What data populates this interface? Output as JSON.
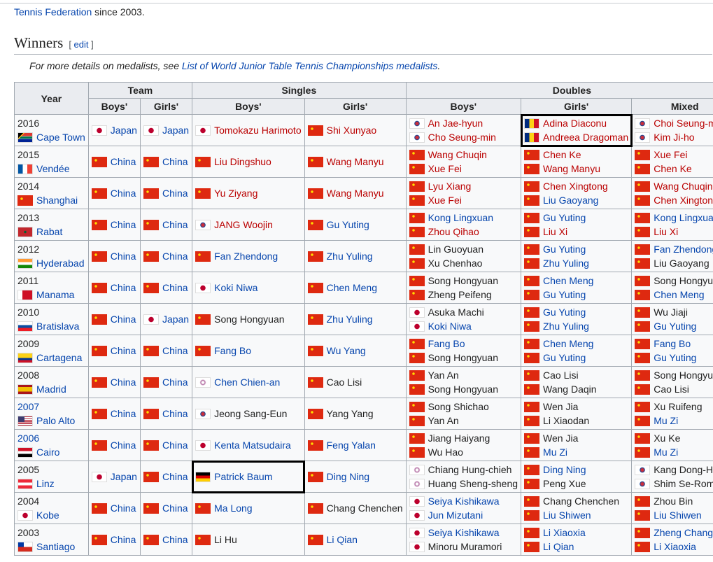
{
  "intro": {
    "link": "Tennis Federation",
    "text": " since 2003."
  },
  "section": {
    "title": "Winners",
    "edit_label": "edit"
  },
  "hatnote": {
    "prefix": "For more details on medalists, see ",
    "link": "List of World Junior Table Tennis Championships medalists",
    "suffix": "."
  },
  "link_colors": {
    "blue": "#0645ad",
    "red": "#ba0000",
    "plain": "#222222"
  },
  "headers": {
    "year": "Year",
    "team": "Team",
    "singles": "Singles",
    "doubles": "Doubles",
    "boys": "Boys'",
    "girls": "Girls'",
    "mixed": "Mixed"
  },
  "columns": [
    "team_boys",
    "team_girls",
    "singles_boys",
    "singles_girls",
    "doubles_boys",
    "doubles_girls",
    "doubles_mixed"
  ],
  "rows": [
    {
      "year": "2016",
      "year_link": "plain",
      "city": [
        "za",
        "Cape Town",
        "blue"
      ],
      "team_boys": [
        [
          "jp",
          "Japan",
          "blue"
        ]
      ],
      "team_girls": [
        [
          "jp",
          "Japan",
          "blue"
        ]
      ],
      "singles_boys": [
        [
          "jp",
          "Tomokazu Harimoto",
          "red"
        ]
      ],
      "singles_girls": [
        [
          "cn",
          "Shi Xunyao",
          "red"
        ]
      ],
      "doubles_boys": [
        [
          "kr",
          "An Jae-hyun",
          "red"
        ],
        [
          "kr",
          "Cho Seung-min",
          "red"
        ]
      ],
      "doubles_girls": [
        [
          "ro",
          "Adina Diaconu",
          "red"
        ],
        [
          "ro",
          "Andreea Dragoman",
          "red"
        ]
      ],
      "doubles_mixed": [
        [
          "kr",
          "Choi Seung-min",
          "red"
        ],
        [
          "kr",
          "Kim Ji-ho",
          "red"
        ]
      ],
      "highlighted": [
        "doubles_girls"
      ]
    },
    {
      "year": "2015",
      "year_link": "plain",
      "city": [
        "fr",
        "Vendée",
        "blue"
      ],
      "team_boys": [
        [
          "cn",
          "China",
          "blue"
        ]
      ],
      "team_girls": [
        [
          "cn",
          "China",
          "blue"
        ]
      ],
      "singles_boys": [
        [
          "cn",
          "Liu Dingshuo",
          "red"
        ]
      ],
      "singles_girls": [
        [
          "cn",
          "Wang Manyu",
          "red"
        ]
      ],
      "doubles_boys": [
        [
          "cn",
          "Wang Chuqin",
          "red"
        ],
        [
          "cn",
          "Xue Fei",
          "red"
        ]
      ],
      "doubles_girls": [
        [
          "cn",
          "Chen Ke",
          "red"
        ],
        [
          "cn",
          "Wang Manyu",
          "red"
        ]
      ],
      "doubles_mixed": [
        [
          "cn",
          "Xue Fei",
          "red"
        ],
        [
          "cn",
          "Chen Ke",
          "red"
        ]
      ]
    },
    {
      "year": "2014",
      "year_link": "plain",
      "city": [
        "cn",
        "Shanghai",
        "blue"
      ],
      "team_boys": [
        [
          "cn",
          "China",
          "blue"
        ]
      ],
      "team_girls": [
        [
          "cn",
          "China",
          "blue"
        ]
      ],
      "singles_boys": [
        [
          "cn",
          "Yu Ziyang",
          "red"
        ]
      ],
      "singles_girls": [
        [
          "cn",
          "Wang Manyu",
          "red"
        ]
      ],
      "doubles_boys": [
        [
          "cn",
          "Lyu Xiang",
          "red"
        ],
        [
          "cn",
          "Xue Fei",
          "red"
        ]
      ],
      "doubles_girls": [
        [
          "cn",
          "Chen Xingtong",
          "red"
        ],
        [
          "cn",
          "Liu Gaoyang",
          "blue"
        ]
      ],
      "doubles_mixed": [
        [
          "cn",
          "Wang Chuqin",
          "red"
        ],
        [
          "cn",
          "Chen Xingtong",
          "red"
        ]
      ]
    },
    {
      "year": "2013",
      "year_link": "plain",
      "city": [
        "ma",
        "Rabat",
        "blue"
      ],
      "team_boys": [
        [
          "cn",
          "China",
          "blue"
        ]
      ],
      "team_girls": [
        [
          "cn",
          "China",
          "blue"
        ]
      ],
      "singles_boys": [
        [
          "kr",
          "JANG Woojin",
          "red"
        ]
      ],
      "singles_girls": [
        [
          "cn",
          "Gu Yuting",
          "blue"
        ]
      ],
      "doubles_boys": [
        [
          "cn",
          "Kong Lingxuan",
          "blue"
        ],
        [
          "cn",
          "Zhou Qihao",
          "red"
        ]
      ],
      "doubles_girls": [
        [
          "cn",
          "Gu Yuting",
          "blue"
        ],
        [
          "cn",
          "Liu Xi",
          "red"
        ]
      ],
      "doubles_mixed": [
        [
          "cn",
          "Kong Lingxuan",
          "blue"
        ],
        [
          "cn",
          "Liu Xi",
          "red"
        ]
      ]
    },
    {
      "year": "2012",
      "year_link": "plain",
      "city": [
        "in",
        "Hyderabad",
        "blue"
      ],
      "team_boys": [
        [
          "cn",
          "China",
          "blue"
        ]
      ],
      "team_girls": [
        [
          "cn",
          "China",
          "blue"
        ]
      ],
      "singles_boys": [
        [
          "cn",
          "Fan Zhendong",
          "blue"
        ]
      ],
      "singles_girls": [
        [
          "cn",
          "Zhu Yuling",
          "blue"
        ]
      ],
      "doubles_boys": [
        [
          "cn",
          "Lin Guoyuan",
          "plain"
        ],
        [
          "cn",
          "Xu Chenhao",
          "plain"
        ]
      ],
      "doubles_girls": [
        [
          "cn",
          "Gu Yuting",
          "blue"
        ],
        [
          "cn",
          "Zhu Yuling",
          "blue"
        ]
      ],
      "doubles_mixed": [
        [
          "cn",
          "Fan Zhendong",
          "blue"
        ],
        [
          "cn",
          "Liu Gaoyang",
          "plain"
        ]
      ]
    },
    {
      "year": "2011",
      "year_link": "plain",
      "city": [
        "bh",
        "Manama",
        "blue"
      ],
      "team_boys": [
        [
          "cn",
          "China",
          "blue"
        ]
      ],
      "team_girls": [
        [
          "cn",
          "China",
          "blue"
        ]
      ],
      "singles_boys": [
        [
          "jp",
          "Koki Niwa",
          "blue"
        ]
      ],
      "singles_girls": [
        [
          "cn",
          "Chen Meng",
          "blue"
        ]
      ],
      "doubles_boys": [
        [
          "cn",
          "Song Hongyuan",
          "plain"
        ],
        [
          "cn",
          "Zheng Peifeng",
          "plain"
        ]
      ],
      "doubles_girls": [
        [
          "cn",
          "Chen Meng",
          "blue"
        ],
        [
          "cn",
          "Gu Yuting",
          "blue"
        ]
      ],
      "doubles_mixed": [
        [
          "cn",
          "Song Hongyuan",
          "plain"
        ],
        [
          "cn",
          "Chen Meng",
          "blue"
        ]
      ]
    },
    {
      "year": "2010",
      "year_link": "plain",
      "city": [
        "sk",
        "Bratislava",
        "blue"
      ],
      "team_boys": [
        [
          "cn",
          "China",
          "blue"
        ]
      ],
      "team_girls": [
        [
          "jp",
          "Japan",
          "blue"
        ]
      ],
      "singles_boys": [
        [
          "cn",
          "Song Hongyuan",
          "plain"
        ]
      ],
      "singles_girls": [
        [
          "cn",
          "Zhu Yuling",
          "blue"
        ]
      ],
      "doubles_boys": [
        [
          "jp",
          "Asuka Machi",
          "plain"
        ],
        [
          "jp",
          "Koki Niwa",
          "blue"
        ]
      ],
      "doubles_girls": [
        [
          "cn",
          "Gu Yuting",
          "blue"
        ],
        [
          "cn",
          "Zhu Yuling",
          "blue"
        ]
      ],
      "doubles_mixed": [
        [
          "cn",
          "Wu Jiaji",
          "plain"
        ],
        [
          "cn",
          "Gu Yuting",
          "blue"
        ]
      ]
    },
    {
      "year": "2009",
      "year_link": "plain",
      "city": [
        "co",
        "Cartagena",
        "blue"
      ],
      "team_boys": [
        [
          "cn",
          "China",
          "blue"
        ]
      ],
      "team_girls": [
        [
          "cn",
          "China",
          "blue"
        ]
      ],
      "singles_boys": [
        [
          "cn",
          "Fang Bo",
          "blue"
        ]
      ],
      "singles_girls": [
        [
          "cn",
          "Wu Yang",
          "blue"
        ]
      ],
      "doubles_boys": [
        [
          "cn",
          "Fang Bo",
          "blue"
        ],
        [
          "cn",
          "Song Hongyuan",
          "plain"
        ]
      ],
      "doubles_girls": [
        [
          "cn",
          "Chen Meng",
          "blue"
        ],
        [
          "cn",
          "Gu Yuting",
          "blue"
        ]
      ],
      "doubles_mixed": [
        [
          "cn",
          "Fang Bo",
          "blue"
        ],
        [
          "cn",
          "Gu Yuting",
          "blue"
        ]
      ]
    },
    {
      "year": "2008",
      "year_link": "plain",
      "city": [
        "es",
        "Madrid",
        "blue"
      ],
      "team_boys": [
        [
          "cn",
          "China",
          "blue"
        ]
      ],
      "team_girls": [
        [
          "cn",
          "China",
          "blue"
        ]
      ],
      "singles_boys": [
        [
          "tw",
          "Chen Chien-an",
          "blue"
        ]
      ],
      "singles_girls": [
        [
          "cn",
          "Cao Lisi",
          "plain"
        ]
      ],
      "doubles_boys": [
        [
          "cn",
          "Yan An",
          "plain"
        ],
        [
          "cn",
          "Song Hongyuan",
          "plain"
        ]
      ],
      "doubles_girls": [
        [
          "cn",
          "Cao Lisi",
          "plain"
        ],
        [
          "cn",
          "Wang Daqin",
          "plain"
        ]
      ],
      "doubles_mixed": [
        [
          "cn",
          "Song Hongyuan",
          "plain"
        ],
        [
          "cn",
          "Cao Lisi",
          "plain"
        ]
      ]
    },
    {
      "year": "2007",
      "year_link": "blue",
      "city": [
        "us",
        "Palo Alto",
        "blue"
      ],
      "team_boys": [
        [
          "cn",
          "China",
          "blue"
        ]
      ],
      "team_girls": [
        [
          "cn",
          "China",
          "blue"
        ]
      ],
      "singles_boys": [
        [
          "kr",
          "Jeong Sang-Eun",
          "plain"
        ]
      ],
      "singles_girls": [
        [
          "cn",
          "Yang Yang",
          "plain"
        ]
      ],
      "doubles_boys": [
        [
          "cn",
          "Song Shichao",
          "plain"
        ],
        [
          "cn",
          "Yan An",
          "plain"
        ]
      ],
      "doubles_girls": [
        [
          "cn",
          "Wen Jia",
          "plain"
        ],
        [
          "cn",
          "Li Xiaodan",
          "plain"
        ]
      ],
      "doubles_mixed": [
        [
          "cn",
          "Xu Ruifeng",
          "plain"
        ],
        [
          "cn",
          "Mu Zi",
          "blue"
        ]
      ]
    },
    {
      "year": "2006",
      "year_link": "blue",
      "city": [
        "eg",
        "Cairo",
        "blue"
      ],
      "team_boys": [
        [
          "cn",
          "China",
          "blue"
        ]
      ],
      "team_girls": [
        [
          "cn",
          "China",
          "blue"
        ]
      ],
      "singles_boys": [
        [
          "jp",
          "Kenta Matsudaira",
          "blue"
        ]
      ],
      "singles_girls": [
        [
          "cn",
          "Feng Yalan",
          "blue"
        ]
      ],
      "doubles_boys": [
        [
          "cn",
          "Jiang Haiyang",
          "plain"
        ],
        [
          "cn",
          "Wu Hao",
          "plain"
        ]
      ],
      "doubles_girls": [
        [
          "cn",
          "Wen Jia",
          "plain"
        ],
        [
          "cn",
          "Mu Zi",
          "blue"
        ]
      ],
      "doubles_mixed": [
        [
          "cn",
          "Xu Ke",
          "plain"
        ],
        [
          "cn",
          "Mu Zi",
          "blue"
        ]
      ]
    },
    {
      "year": "2005",
      "year_link": "plain",
      "city": [
        "at",
        "Linz",
        "blue"
      ],
      "team_boys": [
        [
          "jp",
          "Japan",
          "blue"
        ]
      ],
      "team_girls": [
        [
          "cn",
          "China",
          "blue"
        ]
      ],
      "singles_boys": [
        [
          "de",
          "Patrick Baum",
          "blue"
        ]
      ],
      "singles_girls": [
        [
          "cn",
          "Ding Ning",
          "blue"
        ]
      ],
      "doubles_boys": [
        [
          "tw",
          "Chiang Hung-chieh",
          "plain"
        ],
        [
          "tw",
          "Huang Sheng-sheng",
          "plain"
        ]
      ],
      "doubles_girls": [
        [
          "cn",
          "Ding Ning",
          "blue"
        ],
        [
          "cn",
          "Peng Xue",
          "plain"
        ]
      ],
      "doubles_mixed": [
        [
          "kr",
          "Kang Dong-Hoon",
          "plain"
        ],
        [
          "kr",
          "Shim Se-Rom",
          "plain"
        ]
      ],
      "highlighted": [
        "singles_boys"
      ]
    },
    {
      "year": "2004",
      "year_link": "plain",
      "city": [
        "jp",
        "Kobe",
        "blue"
      ],
      "team_boys": [
        [
          "cn",
          "China",
          "blue"
        ]
      ],
      "team_girls": [
        [
          "cn",
          "China",
          "blue"
        ]
      ],
      "singles_boys": [
        [
          "cn",
          "Ma Long",
          "blue"
        ]
      ],
      "singles_girls": [
        [
          "cn",
          "Chang Chenchen",
          "plain"
        ]
      ],
      "doubles_boys": [
        [
          "jp",
          "Seiya Kishikawa",
          "blue"
        ],
        [
          "jp",
          "Jun Mizutani",
          "blue"
        ]
      ],
      "doubles_girls": [
        [
          "cn",
          "Chang Chenchen",
          "plain"
        ],
        [
          "cn",
          "Liu Shiwen",
          "blue"
        ]
      ],
      "doubles_mixed": [
        [
          "cn",
          "Zhou Bin",
          "plain"
        ],
        [
          "cn",
          "Liu Shiwen",
          "blue"
        ]
      ]
    },
    {
      "year": "2003",
      "year_link": "plain",
      "city": [
        "cl",
        "Santiago",
        "blue"
      ],
      "team_boys": [
        [
          "cn",
          "China",
          "blue"
        ]
      ],
      "team_girls": [
        [
          "cn",
          "China",
          "blue"
        ]
      ],
      "singles_boys": [
        [
          "cn",
          "Li Hu",
          "plain"
        ]
      ],
      "singles_girls": [
        [
          "cn",
          "Li Qian",
          "blue"
        ]
      ],
      "doubles_boys": [
        [
          "jp",
          "Seiya Kishikawa",
          "blue"
        ],
        [
          "jp",
          "Minoru Muramori",
          "plain"
        ]
      ],
      "doubles_girls": [
        [
          "cn",
          "Li Xiaoxia",
          "blue"
        ],
        [
          "cn",
          "Li Qian",
          "blue"
        ]
      ],
      "doubles_mixed": [
        [
          "cn",
          "Zheng Changgong",
          "blue"
        ],
        [
          "cn",
          "Li Xiaoxia",
          "blue"
        ]
      ]
    }
  ]
}
